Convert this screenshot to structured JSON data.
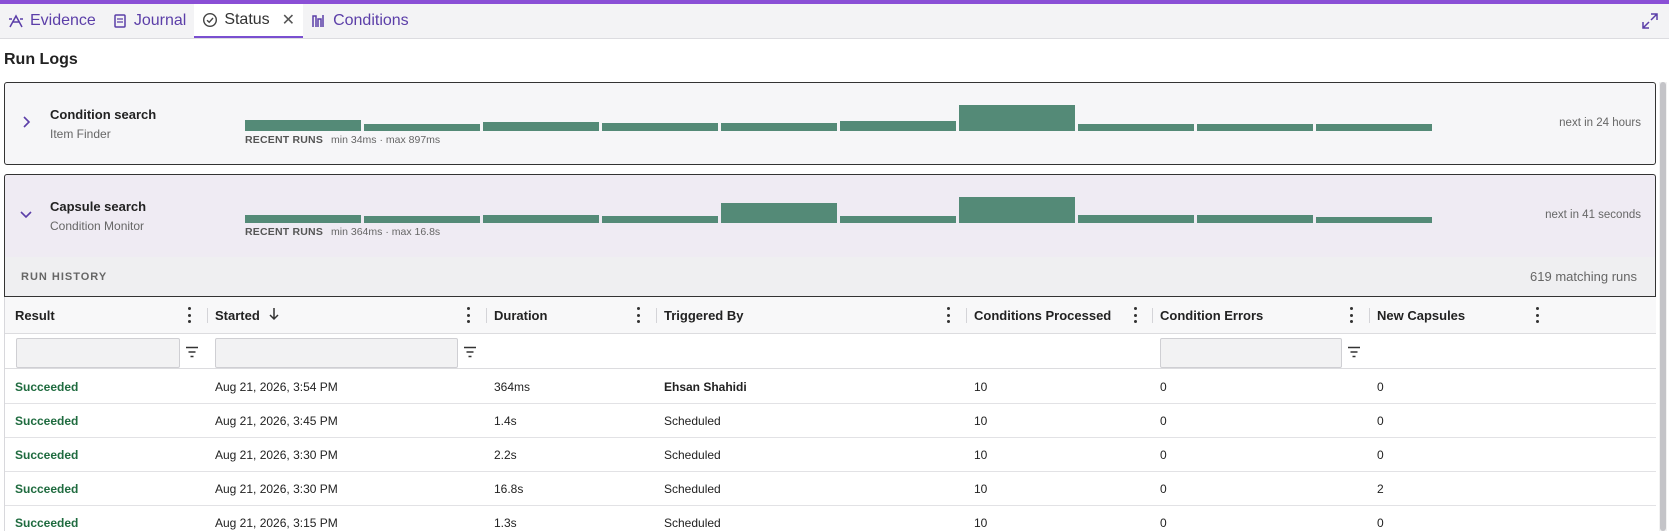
{
  "tabs": [
    {
      "label": "Evidence",
      "icon": "evidence-icon",
      "active": false
    },
    {
      "label": "Journal",
      "icon": "journal-icon",
      "active": false
    },
    {
      "label": "Status",
      "icon": "check-circle-icon",
      "active": true
    },
    {
      "label": "Conditions",
      "icon": "conditions-icon",
      "active": false
    }
  ],
  "page_title": "Run Logs",
  "jobs": [
    {
      "name": "Condition search",
      "subtitle": "Item Finder",
      "expanded": false,
      "recent_label": "RECENT RUNS",
      "range_text": "min 34ms · max 897ms",
      "next_text": "next in 24 hours",
      "run_levels": [
        0.42,
        0.28,
        0.36,
        0.3,
        0.3,
        0.4,
        1.0,
        0.28,
        0.28,
        0.26
      ]
    },
    {
      "name": "Capsule search",
      "subtitle": "Condition Monitor",
      "expanded": true,
      "recent_label": "RECENT RUNS",
      "range_text": "min 364ms · max 16.8s",
      "next_text": "next in 41 seconds",
      "run_levels": [
        0.3,
        0.26,
        0.3,
        0.28,
        0.78,
        0.26,
        1.0,
        0.3,
        0.3,
        0.24
      ]
    }
  ],
  "history": {
    "label": "RUN HISTORY",
    "count_text": "619 matching runs"
  },
  "columns": [
    {
      "label": "Result",
      "sort": "",
      "filter": true
    },
    {
      "label": "Started",
      "sort": "desc",
      "filter": true
    },
    {
      "label": "Duration",
      "sort": "",
      "filter": false
    },
    {
      "label": "Triggered By",
      "sort": "",
      "filter": false
    },
    {
      "label": "Conditions Processed",
      "sort": "",
      "filter": false
    },
    {
      "label": "Condition Errors",
      "sort": "",
      "filter": true
    },
    {
      "label": "New Capsules",
      "sort": "",
      "filter": false
    }
  ],
  "rows": [
    [
      "Succeeded",
      "Aug 21, 2026, 3:54 PM",
      "364ms",
      "Ehsan Shahidi",
      "10",
      "0",
      "0"
    ],
    [
      "Succeeded",
      "Aug 21, 2026, 3:45 PM",
      "1.4s",
      "Scheduled",
      "10",
      "0",
      "0"
    ],
    [
      "Succeeded",
      "Aug 21, 2026, 3:30 PM",
      "2.2s",
      "Scheduled",
      "10",
      "0",
      "0"
    ],
    [
      "Succeeded",
      "Aug 21, 2026, 3:30 PM",
      "16.8s",
      "Scheduled",
      "10",
      "0",
      "2"
    ],
    [
      "Succeeded",
      "Aug 21, 2026, 3:15 PM",
      "1.3s",
      "Scheduled",
      "10",
      "0",
      "0"
    ]
  ],
  "colors": {
    "accent": "#8a4fd6",
    "bar": "#548a77",
    "success": "#1f6b3f"
  }
}
